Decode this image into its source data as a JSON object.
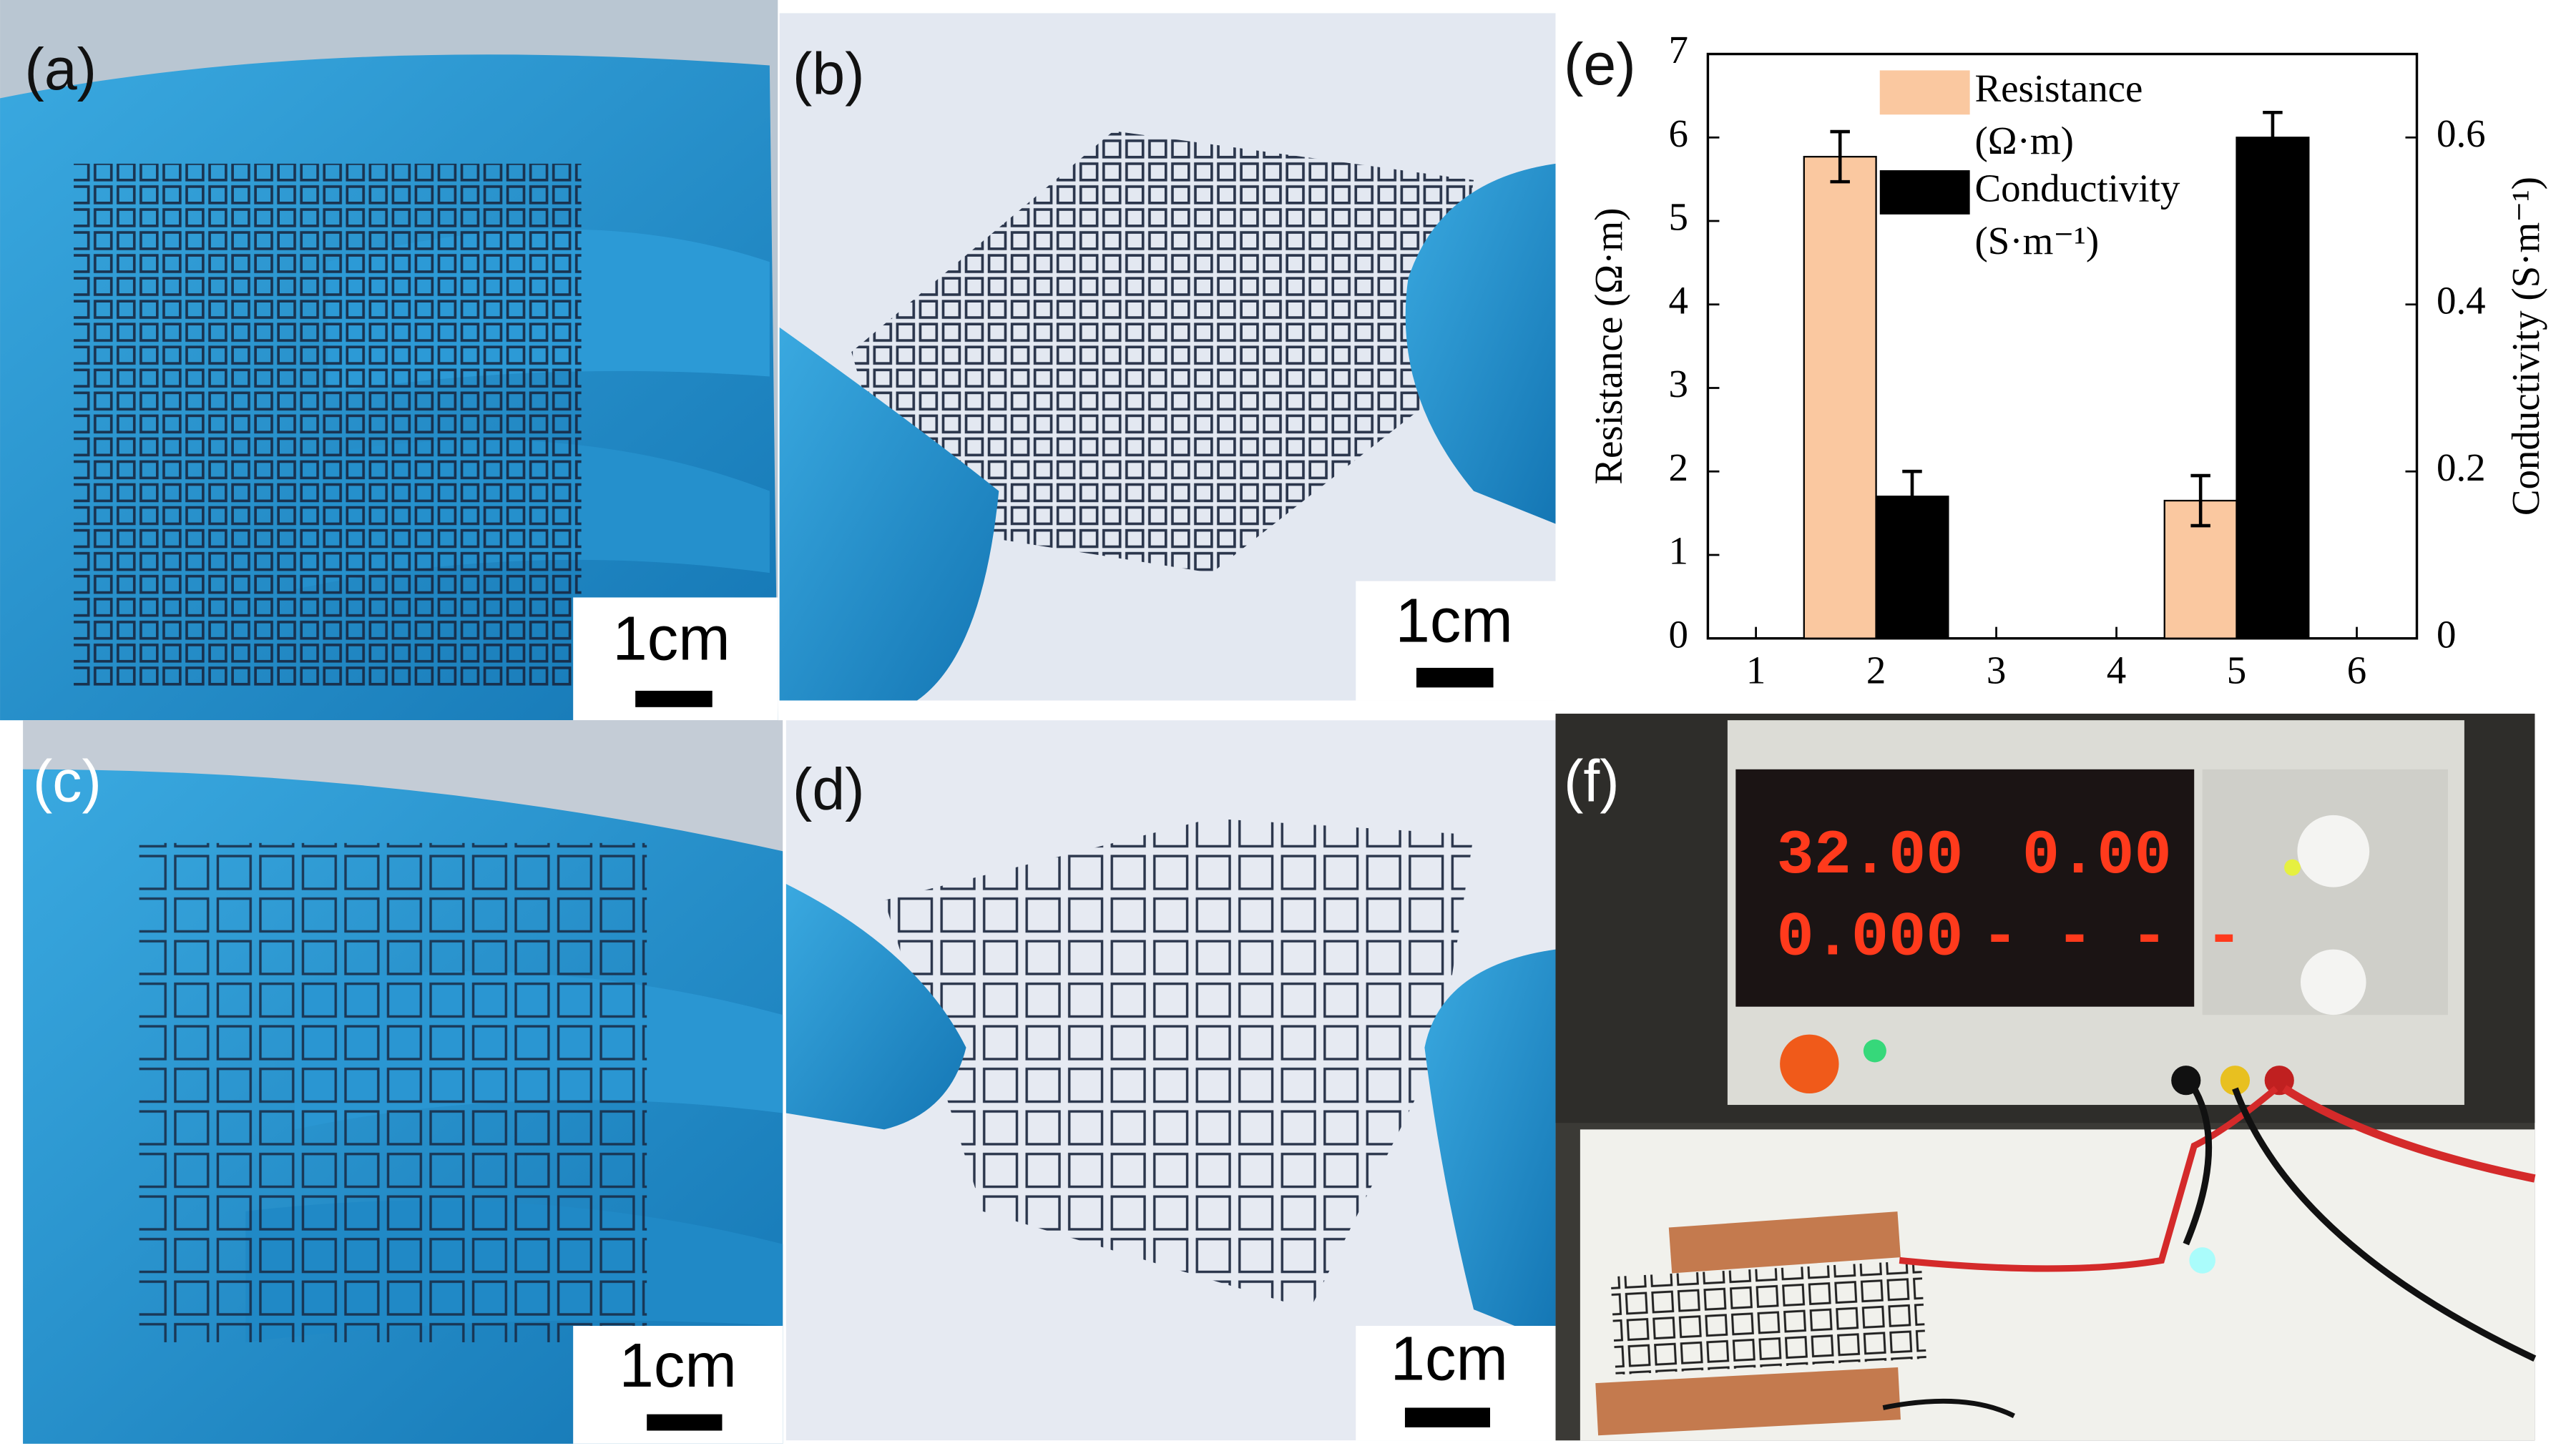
{
  "panels": [
    {
      "label": "(a)",
      "scale_bar": "1cm"
    },
    {
      "label": "(b)",
      "scale_bar": "1cm"
    },
    {
      "label": "(c)",
      "scale_bar": "1cm"
    },
    {
      "label": "(d)",
      "scale_bar": "1cm"
    },
    {
      "label": "(e)"
    },
    {
      "label": "(f)",
      "display": [
        "32.00",
        "0.00",
        "0.000",
        "- - - -"
      ]
    }
  ],
  "chart_data": {
    "type": "bar",
    "x": [
      2,
      5
    ],
    "xlim": [
      0.6,
      6.5
    ],
    "xticks": [
      1,
      2,
      3,
      4,
      5,
      6
    ],
    "ylim": [
      0,
      7
    ],
    "yticks": [
      0,
      1,
      2,
      3,
      4,
      5,
      6,
      7
    ],
    "y2lim": [
      0,
      0.7
    ],
    "y2ticks": [
      0,
      0.2,
      0.4,
      0.6
    ],
    "ylabel": "Resistance (Ω·m)",
    "y2label": "Conductivity (S·m⁻¹)",
    "legend": "top",
    "series": [
      {
        "name": "Resistance (Ω·m)",
        "color": "#fac8a0",
        "values": [
          5.77,
          1.65
        ],
        "errors": [
          0.3,
          0.3
        ]
      },
      {
        "name": "Conductivity (S·m⁻¹)",
        "color": "#000000",
        "axis": "y2",
        "values": [
          0.17,
          0.6
        ],
        "errors": [
          0.03,
          0.03
        ]
      }
    ]
  }
}
